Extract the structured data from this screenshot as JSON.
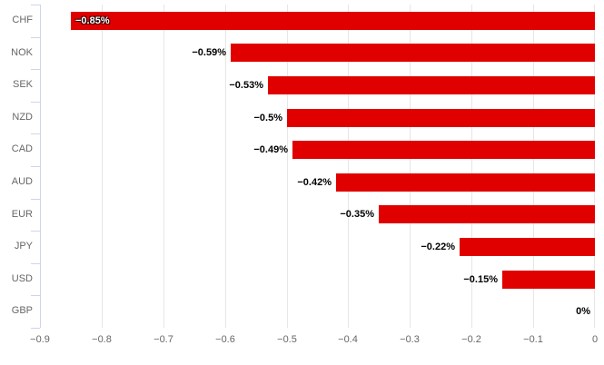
{
  "chart_data": {
    "type": "bar",
    "orientation": "horizontal",
    "title": "",
    "xlabel": "",
    "ylabel": "",
    "categories": [
      "CHF",
      "NOK",
      "SEK",
      "NZD",
      "CAD",
      "AUD",
      "EUR",
      "JPY",
      "USD",
      "GBP"
    ],
    "values": [
      -0.85,
      -0.59,
      -0.53,
      -0.5,
      -0.49,
      -0.42,
      -0.35,
      -0.22,
      -0.15,
      0
    ],
    "data_labels": [
      "−0.85%",
      "−0.59%",
      "−0.53%",
      "−0.5%",
      "−0.49%",
      "−0.42%",
      "−0.35%",
      "−0.22%",
      "−0.15%",
      "0%"
    ],
    "x_ticks": [
      -0.9,
      -0.8,
      -0.7,
      -0.6,
      -0.5,
      -0.4,
      -0.3,
      -0.2,
      -0.1,
      0
    ],
    "x_tick_labels": [
      "−0.9",
      "−0.8",
      "−0.7",
      "−0.6",
      "−0.5",
      "−0.4",
      "−0.3",
      "−0.2",
      "−0.1",
      "0"
    ],
    "xlim": [
      -0.9,
      0
    ],
    "grid": true,
    "legend": false,
    "colors": {
      "bar": "#e00000",
      "gridline": "#e6e6e6",
      "axis_line": "#ccd6eb",
      "axis_label": "#666666",
      "data_label": "#000000",
      "background": "#ffffff"
    }
  }
}
